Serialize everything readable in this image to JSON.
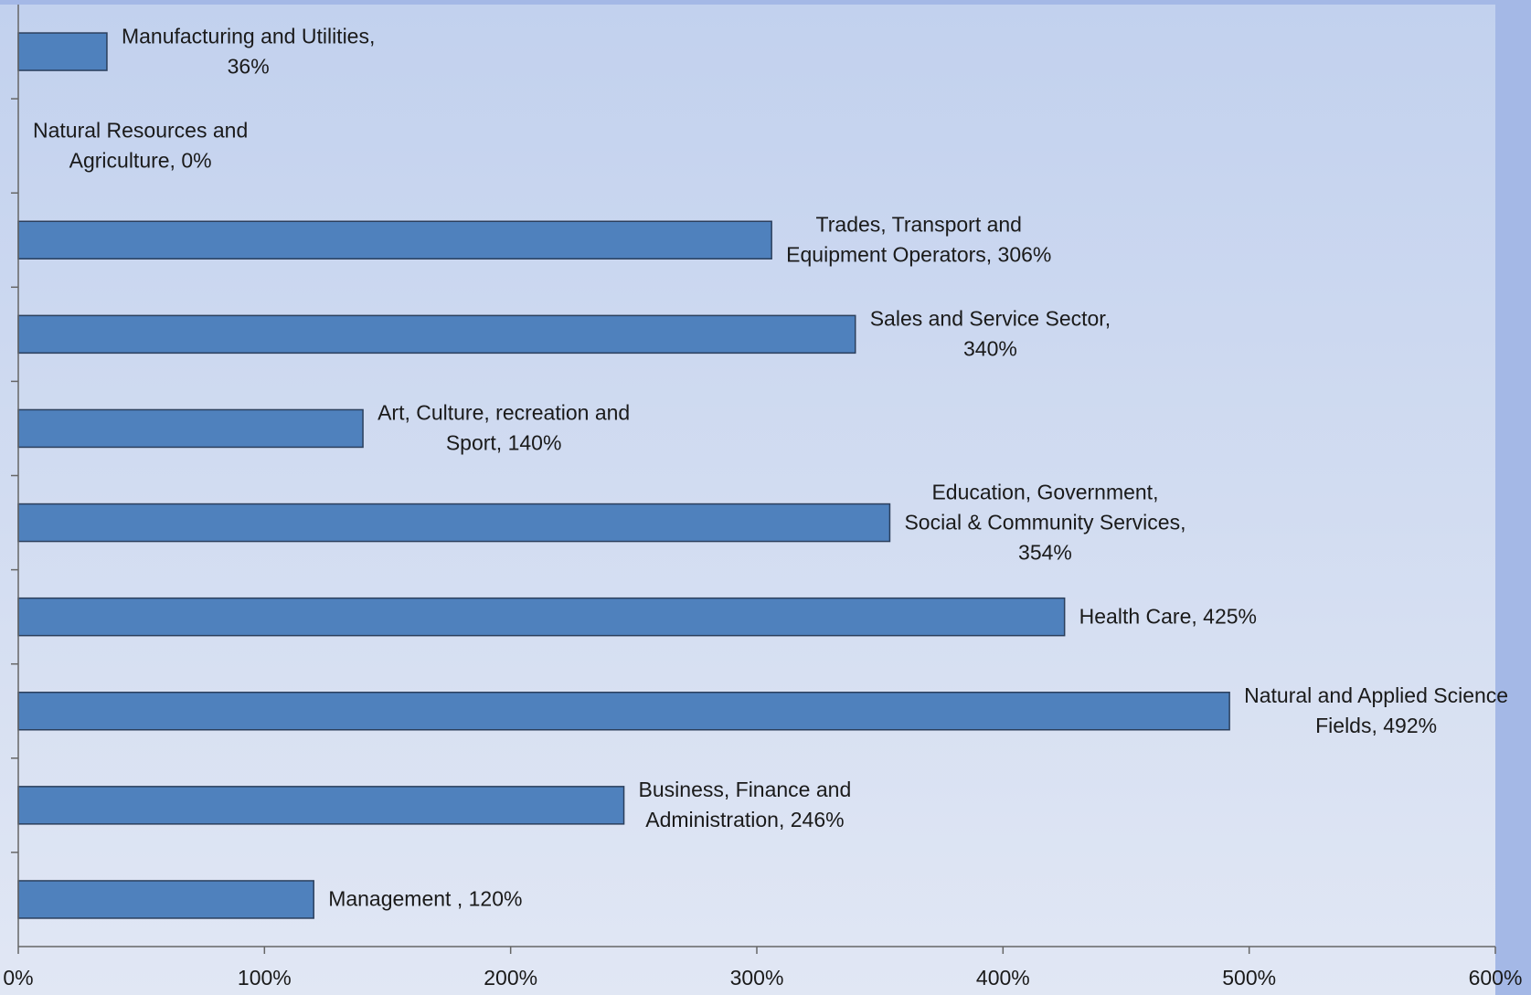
{
  "chart_data": {
    "type": "bar",
    "orientation": "horizontal",
    "categories": [
      "Manufacturing and Utilities",
      "Natural Resources and Agriculture",
      "Trades, Transport and Equipment Operators",
      "Sales and Service Sector",
      "Art, Culture, recreation and Sport",
      "Education, Government, Social & Community Services",
      "Health Care",
      "Natural and Applied Science Fields",
      "Business, Finance and Administration",
      "Management"
    ],
    "values": [
      36,
      0,
      306,
      340,
      140,
      354,
      425,
      492,
      246,
      120
    ],
    "data_labels": [
      [
        "Manufacturing and Utilities,",
        "36%"
      ],
      [
        "Natural Resources and",
        "Agriculture, 0%"
      ],
      [
        "Trades, Transport and",
        "Equipment Operators, 306%"
      ],
      [
        "Sales and Service Sector,",
        "340%"
      ],
      [
        "Art, Culture, recreation and",
        "Sport, 140%"
      ],
      [
        "Education, Government,",
        "Social & Community Services,",
        "354%"
      ],
      [
        "Health Care, 425%"
      ],
      [
        "Natural and Applied Science",
        "Fields, 492%"
      ],
      [
        "Business, Finance and",
        "Administration, 246%"
      ],
      [
        "Management , 120%"
      ]
    ],
    "x_ticks": [
      "0%",
      "100%",
      "200%",
      "300%",
      "400%",
      "500%",
      "600%"
    ],
    "xlim": [
      0,
      600
    ],
    "title": "",
    "xlabel": "",
    "ylabel": "",
    "grid": false,
    "legend": "none",
    "colors": {
      "bar_fill": "#4f81bd",
      "bar_stroke": "#2b3f5c",
      "plot_top": "#c2d1ee",
      "plot_bottom": "#e1e7f4",
      "outer_background": "#a4b8e6",
      "axis": "#666666"
    }
  }
}
